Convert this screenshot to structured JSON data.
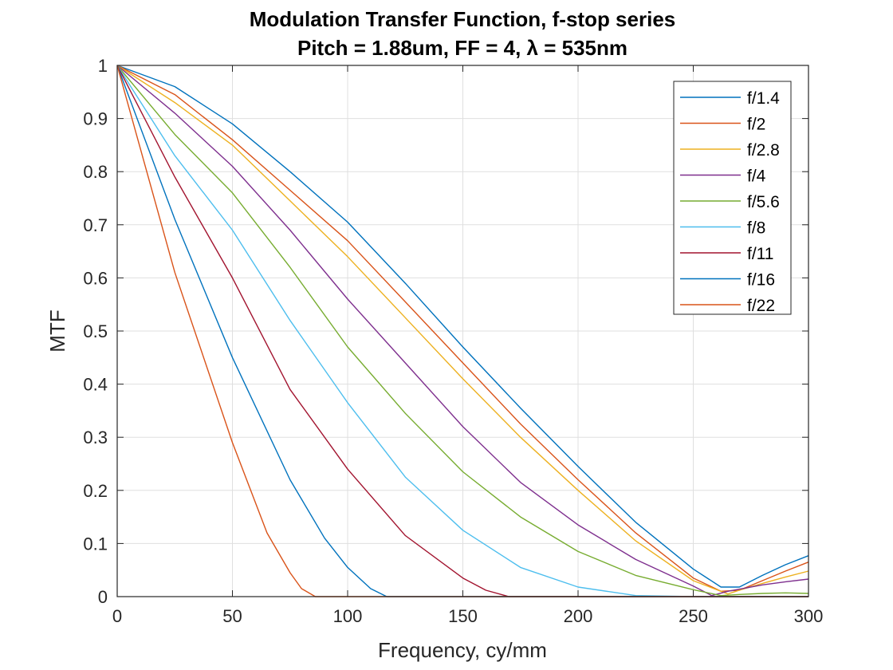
{
  "chart_data": {
    "type": "line",
    "title": "Modulation Transfer Function, f-stop series",
    "subtitle": "Pitch = 1.88um, FF = 4, λ = 535nm",
    "xlabel": "Frequency, cy/mm",
    "ylabel": "MTF",
    "xlim": [
      0,
      300
    ],
    "ylim": [
      0,
      1
    ],
    "xticks": [
      0,
      50,
      100,
      150,
      200,
      250,
      300
    ],
    "yticks": [
      0,
      0.1,
      0.2,
      0.3,
      0.4,
      0.5,
      0.6,
      0.7,
      0.8,
      0.9,
      1
    ],
    "grid": true,
    "legend_position": "top-right",
    "series": [
      {
        "name": "f/1.4",
        "color": "#0072BD",
        "x": [
          0,
          25,
          50,
          75,
          100,
          125,
          150,
          175,
          200,
          225,
          250,
          262,
          270,
          280,
          290,
          300
        ],
        "y": [
          1,
          0.96,
          0.89,
          0.8,
          0.705,
          0.59,
          0.47,
          0.355,
          0.245,
          0.14,
          0.052,
          0.018,
          0.018,
          0.04,
          0.06,
          0.077
        ]
      },
      {
        "name": "f/2",
        "color": "#D95319",
        "x": [
          0,
          25,
          50,
          75,
          100,
          125,
          150,
          175,
          200,
          225,
          250,
          262,
          270,
          280,
          290,
          300
        ],
        "y": [
          1,
          0.945,
          0.86,
          0.765,
          0.67,
          0.555,
          0.44,
          0.325,
          0.22,
          0.12,
          0.035,
          0.01,
          0.012,
          0.03,
          0.048,
          0.065
        ]
      },
      {
        "name": "f/2.8",
        "color": "#EDB120",
        "x": [
          0,
          25,
          50,
          75,
          100,
          125,
          150,
          175,
          200,
          225,
          250,
          265,
          270,
          280,
          290,
          300
        ],
        "y": [
          1,
          0.93,
          0.85,
          0.745,
          0.64,
          0.525,
          0.41,
          0.3,
          0.2,
          0.105,
          0.03,
          0.005,
          0.012,
          0.025,
          0.037,
          0.048
        ]
      },
      {
        "name": "f/4",
        "color": "#7E2F8E",
        "x": [
          0,
          25,
          50,
          75,
          100,
          125,
          150,
          175,
          200,
          225,
          250,
          258,
          265,
          280,
          290,
          300
        ],
        "y": [
          1,
          0.91,
          0.81,
          0.69,
          0.56,
          0.44,
          0.32,
          0.215,
          0.135,
          0.07,
          0.02,
          0.002,
          0.01,
          0.022,
          0.028,
          0.033
        ]
      },
      {
        "name": "f/5.6",
        "color": "#77AC30",
        "x": [
          0,
          25,
          50,
          75,
          100,
          125,
          150,
          175,
          200,
          225,
          250,
          262,
          270,
          280,
          290,
          300
        ],
        "y": [
          1,
          0.87,
          0.76,
          0.62,
          0.47,
          0.345,
          0.235,
          0.15,
          0.085,
          0.04,
          0.013,
          0.002,
          0.004,
          0.006,
          0.007,
          0.006
        ]
      },
      {
        "name": "f/8",
        "color": "#4DBEEE",
        "x": [
          0,
          25,
          50,
          75,
          100,
          125,
          150,
          175,
          200,
          225,
          250,
          275,
          300
        ],
        "y": [
          1,
          0.83,
          0.69,
          0.52,
          0.365,
          0.225,
          0.125,
          0.055,
          0.018,
          0.002,
          0,
          0,
          0
        ]
      },
      {
        "name": "f/11",
        "color": "#A2142F",
        "x": [
          0,
          25,
          50,
          75,
          100,
          125,
          150,
          160,
          170,
          200,
          250,
          300
        ],
        "y": [
          1,
          0.79,
          0.6,
          0.39,
          0.24,
          0.115,
          0.035,
          0.012,
          0,
          0,
          0,
          0
        ]
      },
      {
        "name": "f/16",
        "color": "#0072BD",
        "x": [
          0,
          25,
          50,
          75,
          90,
          100,
          110,
          117,
          150,
          200,
          250,
          300
        ],
        "y": [
          1,
          0.71,
          0.45,
          0.22,
          0.11,
          0.055,
          0.015,
          0,
          0,
          0,
          0,
          0
        ]
      },
      {
        "name": "f/22",
        "color": "#D95319",
        "x": [
          0,
          25,
          50,
          65,
          75,
          80,
          86,
          100,
          150,
          200,
          250,
          300
        ],
        "y": [
          1,
          0.61,
          0.29,
          0.12,
          0.045,
          0.015,
          0,
          0,
          0,
          0,
          0,
          0
        ]
      }
    ]
  }
}
